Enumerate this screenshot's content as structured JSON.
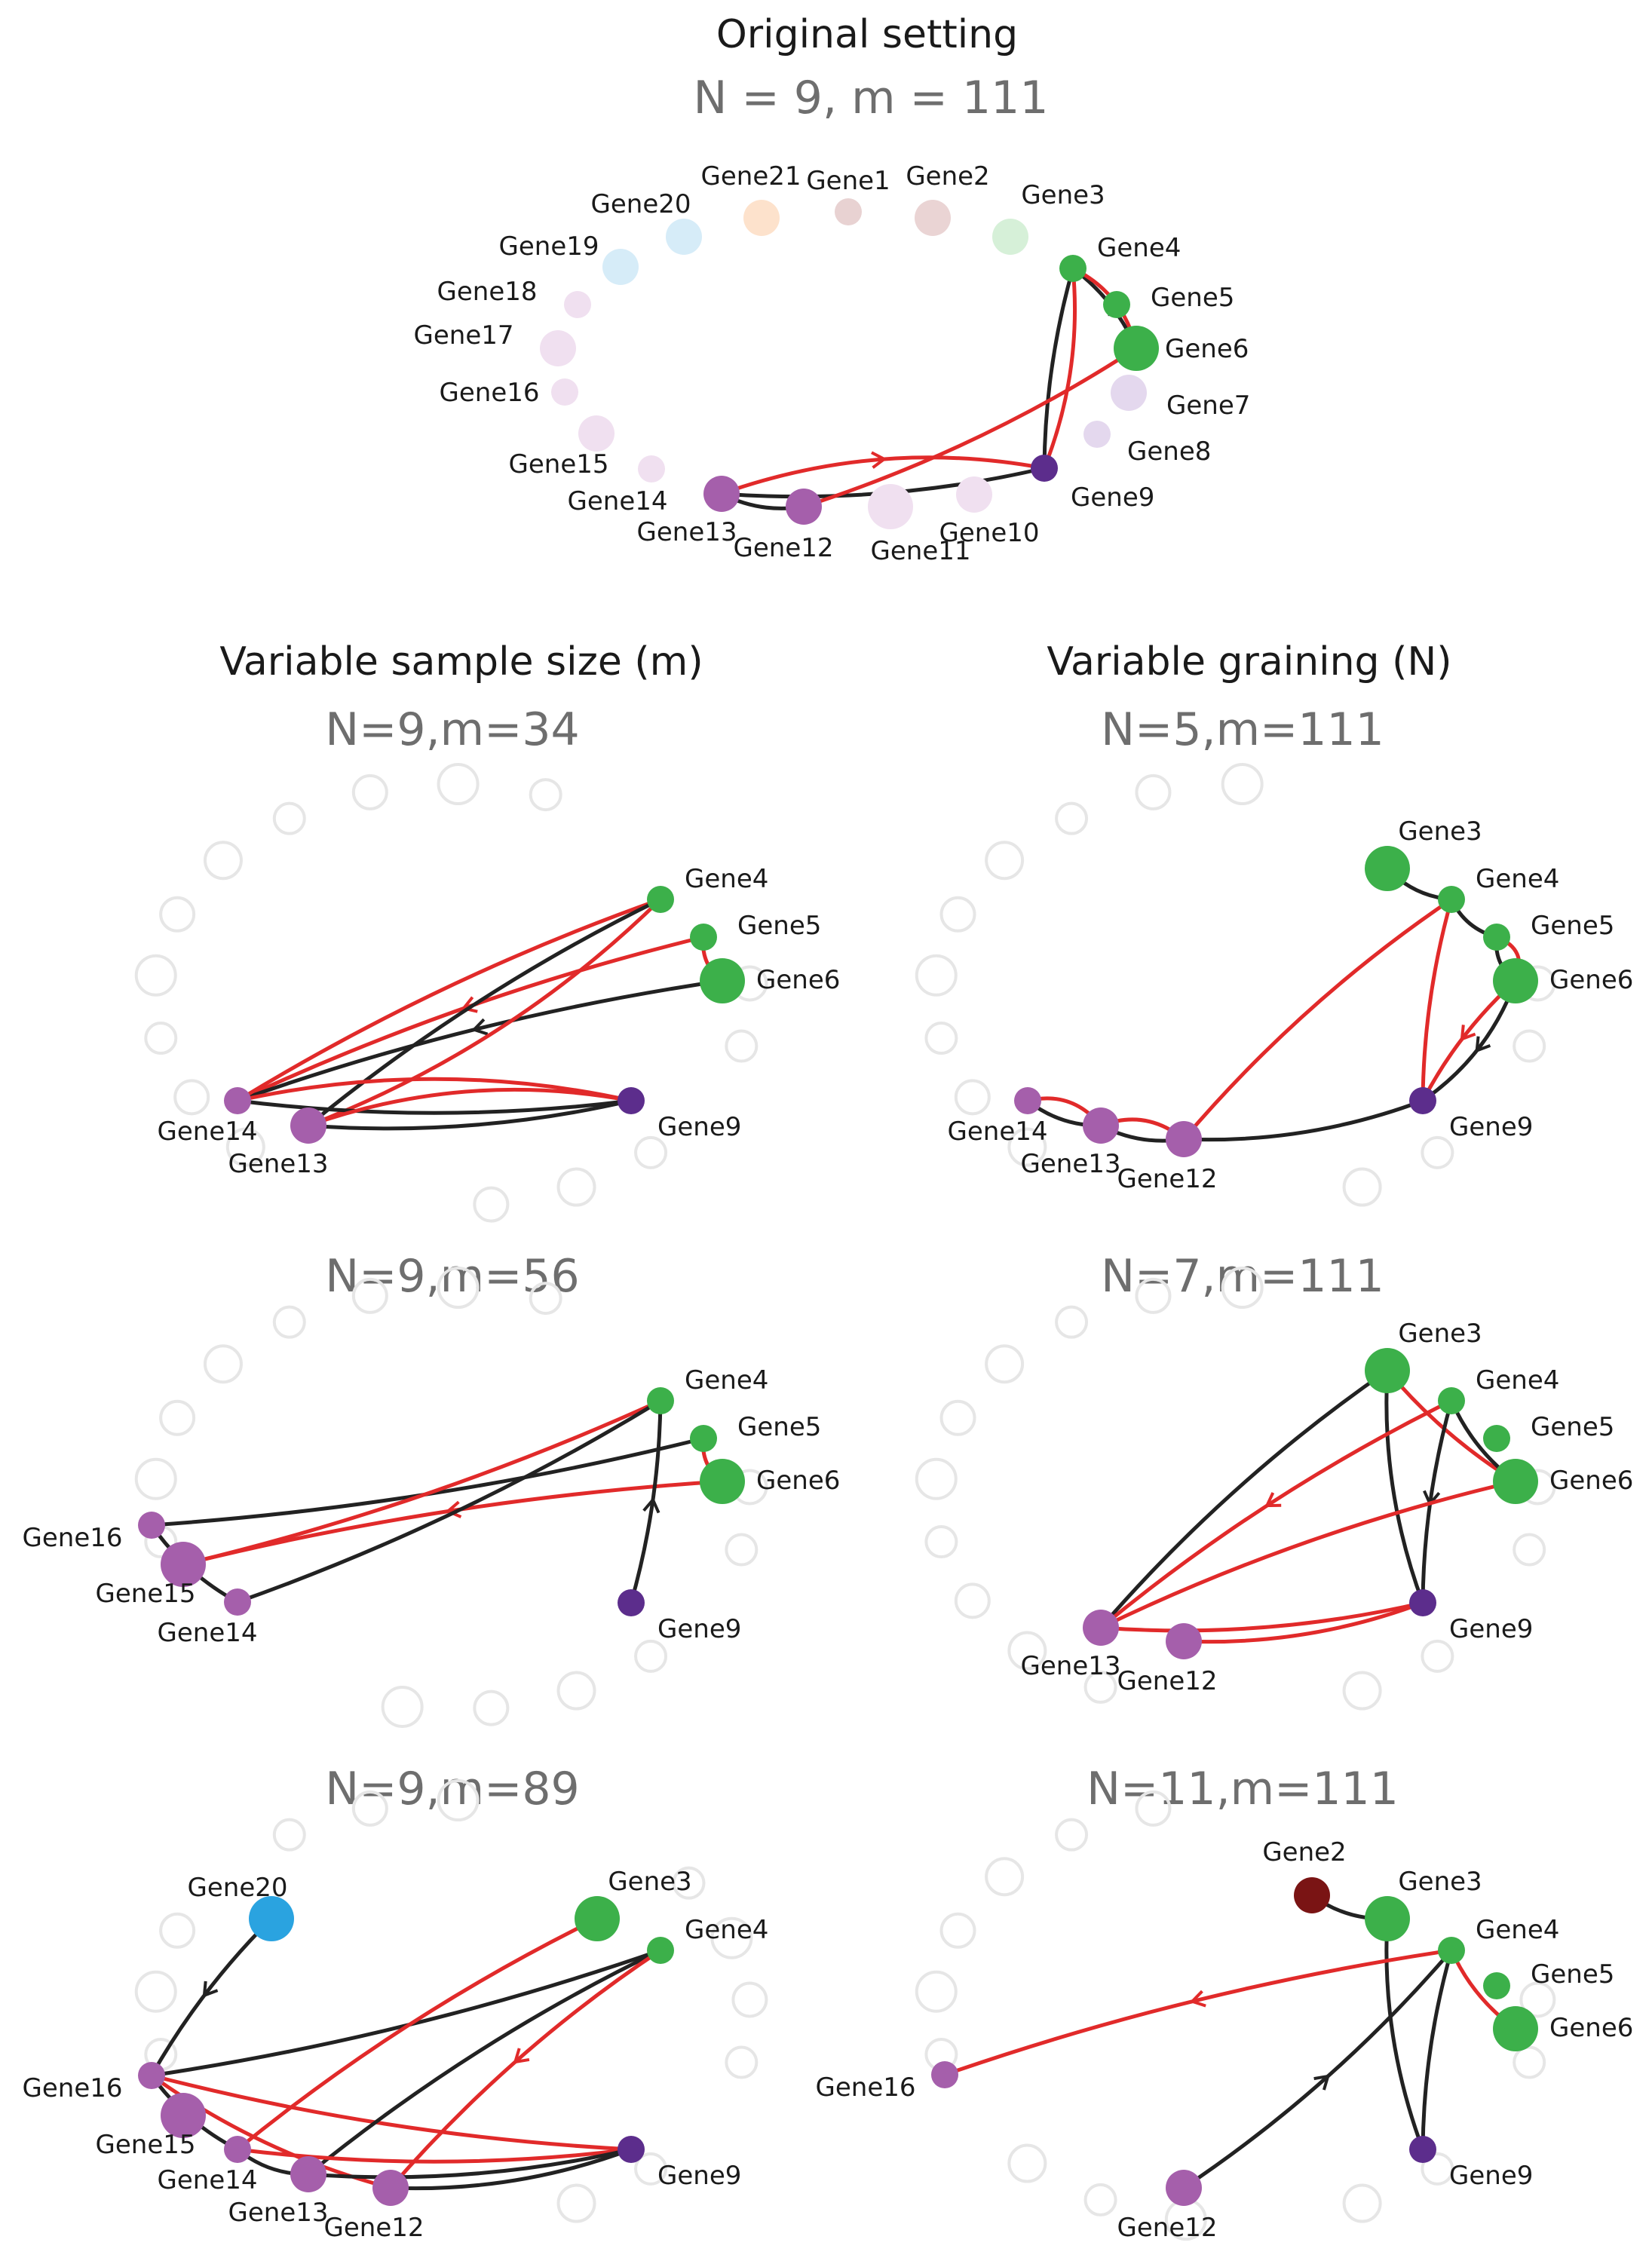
{
  "colors": {
    "black_edge": "#222222",
    "red_edge": "#e12a2a",
    "green": "#3cb04a",
    "purple_light": "#a55fab",
    "purple_dark": "#5c2d8c",
    "blue": "#2aa3e0",
    "maroon": "#7a1414",
    "hollow_stroke": "#e6e6e6"
  },
  "headers": {
    "original_title": "Original setting",
    "original_subtitle": "N = 9, m = 111",
    "left_column_title": "Variable sample size (m)",
    "right_column_title": "Variable graining (N)"
  },
  "panels": [
    {
      "id": "original",
      "subtitle": "N = 9, m = 111",
      "style": "full",
      "nodes": [
        {
          "gene": "Gene1",
          "color": "#e8d2d2",
          "size": "small"
        },
        {
          "gene": "Gene2",
          "color": "#ead4d4",
          "size": "medium"
        },
        {
          "gene": "Gene3",
          "color": "#d6f0d8",
          "size": "medium"
        },
        {
          "gene": "Gene4",
          "color": "#3cb04a",
          "size": "small",
          "active": true
        },
        {
          "gene": "Gene5",
          "color": "#3cb04a",
          "size": "small",
          "active": true
        },
        {
          "gene": "Gene6",
          "color": "#3cb04a",
          "size": "large",
          "active": true
        },
        {
          "gene": "Gene7",
          "color": "#e4d8ee",
          "size": "medium"
        },
        {
          "gene": "Gene8",
          "color": "#e4d8ee",
          "size": "small"
        },
        {
          "gene": "Gene9",
          "color": "#5c2d8c",
          "size": "small",
          "active": true
        },
        {
          "gene": "Gene10",
          "color": "#f0e0f0",
          "size": "medium"
        },
        {
          "gene": "Gene11",
          "color": "#f0e0f0",
          "size": "large"
        },
        {
          "gene": "Gene12",
          "color": "#a55fab",
          "size": "medium",
          "active": true
        },
        {
          "gene": "Gene13",
          "color": "#a55fab",
          "size": "medium",
          "active": true
        },
        {
          "gene": "Gene14",
          "color": "#f0e0f0",
          "size": "small"
        },
        {
          "gene": "Gene15",
          "color": "#f0e0f0",
          "size": "medium"
        },
        {
          "gene": "Gene16",
          "color": "#f0e0f0",
          "size": "small"
        },
        {
          "gene": "Gene17",
          "color": "#f0e0f0",
          "size": "medium"
        },
        {
          "gene": "Gene18",
          "color": "#f0e0f0",
          "size": "small"
        },
        {
          "gene": "Gene19",
          "color": "#d6ecf8",
          "size": "medium"
        },
        {
          "gene": "Gene20",
          "color": "#d6ecf8",
          "size": "medium"
        },
        {
          "gene": "Gene21",
          "color": "#fde2cc",
          "size": "medium"
        }
      ],
      "edges": [
        {
          "from": "Gene6",
          "to": "Gene4",
          "color": "black",
          "arrow": true
        },
        {
          "from": "Gene4",
          "to": "Gene6",
          "color": "red"
        },
        {
          "from": "Gene4",
          "to": "Gene9",
          "color": "black"
        },
        {
          "from": "Gene4",
          "to": "Gene9",
          "color": "red"
        },
        {
          "from": "Gene13",
          "to": "Gene9",
          "color": "black"
        },
        {
          "from": "Gene13",
          "to": "Gene9",
          "color": "red",
          "arrow": true
        },
        {
          "from": "Gene12",
          "to": "Gene6",
          "color": "red"
        },
        {
          "from": "Gene13",
          "to": "Gene12",
          "color": "black"
        }
      ]
    },
    {
      "id": "m34",
      "subtitle": "N=9,m=34",
      "style": "hollow",
      "nodes": [
        {
          "gene": "Gene4",
          "color": "#3cb04a",
          "size": "small"
        },
        {
          "gene": "Gene5",
          "color": "#3cb04a",
          "size": "small"
        },
        {
          "gene": "Gene6",
          "color": "#3cb04a",
          "size": "large"
        },
        {
          "gene": "Gene9",
          "color": "#5c2d8c",
          "size": "small"
        },
        {
          "gene": "Gene13",
          "color": "#a55fab",
          "size": "medium"
        },
        {
          "gene": "Gene14",
          "color": "#a55fab",
          "size": "small"
        }
      ],
      "edges": [
        {
          "from": "Gene5",
          "to": "Gene14",
          "color": "red",
          "arrow": true
        },
        {
          "from": "Gene5",
          "to": "Gene6",
          "color": "red"
        },
        {
          "from": "Gene6",
          "to": "Gene14",
          "color": "black",
          "arrow": true
        },
        {
          "from": "Gene4",
          "to": "Gene14",
          "color": "red"
        },
        {
          "from": "Gene4",
          "to": "Gene13",
          "color": "black"
        },
        {
          "from": "Gene4",
          "to": "Gene13",
          "color": "red"
        },
        {
          "from": "Gene14",
          "to": "Gene9",
          "color": "black"
        },
        {
          "from": "Gene14",
          "to": "Gene9",
          "color": "red"
        },
        {
          "from": "Gene13",
          "to": "Gene9",
          "color": "black"
        },
        {
          "from": "Gene13",
          "to": "Gene9",
          "color": "red"
        }
      ]
    },
    {
      "id": "n5",
      "subtitle": "N=5,m=111",
      "style": "hollow",
      "nodes": [
        {
          "gene": "Gene3",
          "color": "#3cb04a",
          "size": "large"
        },
        {
          "gene": "Gene4",
          "color": "#3cb04a",
          "size": "small"
        },
        {
          "gene": "Gene5",
          "color": "#3cb04a",
          "size": "small"
        },
        {
          "gene": "Gene6",
          "color": "#3cb04a",
          "size": "large"
        },
        {
          "gene": "Gene9",
          "color": "#5c2d8c",
          "size": "small"
        },
        {
          "gene": "Gene12",
          "color": "#a55fab",
          "size": "medium"
        },
        {
          "gene": "Gene13",
          "color": "#a55fab",
          "size": "medium"
        },
        {
          "gene": "Gene14",
          "color": "#a55fab",
          "size": "small"
        }
      ],
      "edges": [
        {
          "from": "Gene3",
          "to": "Gene4",
          "color": "black"
        },
        {
          "from": "Gene4",
          "to": "Gene5",
          "color": "black"
        },
        {
          "from": "Gene5",
          "to": "Gene6",
          "color": "black"
        },
        {
          "from": "Gene5",
          "to": "Gene6",
          "color": "red"
        },
        {
          "from": "Gene4",
          "to": "Gene9",
          "color": "red"
        },
        {
          "from": "Gene6",
          "to": "Gene9",
          "color": "red",
          "arrow": true
        },
        {
          "from": "Gene6",
          "to": "Gene9",
          "color": "black",
          "arrow": true
        },
        {
          "from": "Gene4",
          "to": "Gene12",
          "color": "red"
        },
        {
          "from": "Gene12",
          "to": "Gene9",
          "color": "black"
        },
        {
          "from": "Gene14",
          "to": "Gene13",
          "color": "black"
        },
        {
          "from": "Gene14",
          "to": "Gene13",
          "color": "red"
        },
        {
          "from": "Gene13",
          "to": "Gene12",
          "color": "black"
        },
        {
          "from": "Gene13",
          "to": "Gene12",
          "color": "red"
        }
      ]
    },
    {
      "id": "m56",
      "subtitle": "N=9,m=56",
      "style": "hollow",
      "nodes": [
        {
          "gene": "Gene4",
          "color": "#3cb04a",
          "size": "small"
        },
        {
          "gene": "Gene5",
          "color": "#3cb04a",
          "size": "small"
        },
        {
          "gene": "Gene6",
          "color": "#3cb04a",
          "size": "large"
        },
        {
          "gene": "Gene9",
          "color": "#5c2d8c",
          "size": "small"
        },
        {
          "gene": "Gene14",
          "color": "#a55fab",
          "size": "small"
        },
        {
          "gene": "Gene15",
          "color": "#a55fab",
          "size": "large"
        },
        {
          "gene": "Gene16",
          "color": "#a55fab",
          "size": "small"
        }
      ],
      "edges": [
        {
          "from": "Gene16",
          "to": "Gene5",
          "color": "black"
        },
        {
          "from": "Gene15",
          "to": "Gene4",
          "color": "red"
        },
        {
          "from": "Gene6",
          "to": "Gene15",
          "color": "red",
          "arrow": true
        },
        {
          "from": "Gene5",
          "to": "Gene6",
          "color": "red"
        },
        {
          "from": "Gene14",
          "to": "Gene4",
          "color": "black"
        },
        {
          "from": "Gene9",
          "to": "Gene4",
          "color": "black",
          "arrow": true
        },
        {
          "from": "Gene16",
          "to": "Gene14",
          "color": "black"
        }
      ]
    },
    {
      "id": "n7",
      "subtitle": "N=7,m=111",
      "style": "hollow",
      "nodes": [
        {
          "gene": "Gene3",
          "color": "#3cb04a",
          "size": "large"
        },
        {
          "gene": "Gene4",
          "color": "#3cb04a",
          "size": "small"
        },
        {
          "gene": "Gene5",
          "color": "#3cb04a",
          "size": "small"
        },
        {
          "gene": "Gene6",
          "color": "#3cb04a",
          "size": "large"
        },
        {
          "gene": "Gene9",
          "color": "#5c2d8c",
          "size": "small"
        },
        {
          "gene": "Gene12",
          "color": "#a55fab",
          "size": "medium"
        },
        {
          "gene": "Gene13",
          "color": "#a55fab",
          "size": "medium"
        }
      ],
      "edges": [
        {
          "from": "Gene3",
          "to": "Gene13",
          "color": "black"
        },
        {
          "from": "Gene3",
          "to": "Gene9",
          "color": "black"
        },
        {
          "from": "Gene3",
          "to": "Gene6",
          "color": "red"
        },
        {
          "from": "Gene4",
          "to": "Gene6",
          "color": "black"
        },
        {
          "from": "Gene4",
          "to": "Gene9",
          "color": "black",
          "arrow": true
        },
        {
          "from": "Gene4",
          "to": "Gene13",
          "color": "red",
          "arrow": true
        },
        {
          "from": "Gene6",
          "to": "Gene13",
          "color": "red"
        },
        {
          "from": "Gene13",
          "to": "Gene9",
          "color": "red"
        },
        {
          "from": "Gene12",
          "to": "Gene9",
          "color": "red"
        }
      ]
    },
    {
      "id": "m89",
      "subtitle": "N=9,m=89",
      "style": "hollow",
      "nodes": [
        {
          "gene": "Gene3",
          "color": "#3cb04a",
          "size": "large"
        },
        {
          "gene": "Gene4",
          "color": "#3cb04a",
          "size": "small"
        },
        {
          "gene": "Gene9",
          "color": "#5c2d8c",
          "size": "small"
        },
        {
          "gene": "Gene12",
          "color": "#a55fab",
          "size": "medium"
        },
        {
          "gene": "Gene13",
          "color": "#a55fab",
          "size": "medium"
        },
        {
          "gene": "Gene14",
          "color": "#a55fab",
          "size": "small"
        },
        {
          "gene": "Gene15",
          "color": "#a55fab",
          "size": "large"
        },
        {
          "gene": "Gene16",
          "color": "#a55fab",
          "size": "small"
        },
        {
          "gene": "Gene20",
          "color": "#2aa3e0",
          "size": "large"
        }
      ],
      "edges": [
        {
          "from": "Gene20",
          "to": "Gene16",
          "color": "black",
          "arrow": true
        },
        {
          "from": "Gene16",
          "to": "Gene4",
          "color": "black"
        },
        {
          "from": "Gene16",
          "to": "Gene9",
          "color": "red"
        },
        {
          "from": "Gene16",
          "to": "Gene12",
          "color": "red"
        },
        {
          "from": "Gene16",
          "to": "Gene14",
          "color": "black"
        },
        {
          "from": "Gene3",
          "to": "Gene14",
          "color": "red"
        },
        {
          "from": "Gene4",
          "to": "Gene13",
          "color": "black"
        },
        {
          "from": "Gene4",
          "to": "Gene12",
          "color": "red",
          "arrow": true
        },
        {
          "from": "Gene14",
          "to": "Gene9",
          "color": "red"
        },
        {
          "from": "Gene13",
          "to": "Gene9",
          "color": "black"
        },
        {
          "from": "Gene12",
          "to": "Gene9",
          "color": "black"
        },
        {
          "from": "Gene14",
          "to": "Gene13",
          "color": "black"
        }
      ]
    },
    {
      "id": "n11",
      "subtitle": "N=11,m=111",
      "style": "hollow",
      "nodes": [
        {
          "gene": "Gene2",
          "color": "#7a1414",
          "size": "medium"
        },
        {
          "gene": "Gene3",
          "color": "#3cb04a",
          "size": "large"
        },
        {
          "gene": "Gene4",
          "color": "#3cb04a",
          "size": "small"
        },
        {
          "gene": "Gene5",
          "color": "#3cb04a",
          "size": "small"
        },
        {
          "gene": "Gene6",
          "color": "#3cb04a",
          "size": "large"
        },
        {
          "gene": "Gene9",
          "color": "#5c2d8c",
          "size": "small"
        },
        {
          "gene": "Gene12",
          "color": "#a55fab",
          "size": "medium"
        },
        {
          "gene": "Gene16",
          "color": "#a55fab",
          "size": "small"
        }
      ],
      "edges": [
        {
          "from": "Gene2",
          "to": "Gene3",
          "color": "black"
        },
        {
          "from": "Gene3",
          "to": "Gene9",
          "color": "black"
        },
        {
          "from": "Gene4",
          "to": "Gene9",
          "color": "black"
        },
        {
          "from": "Gene4",
          "to": "Gene6",
          "color": "red"
        },
        {
          "from": "Gene4",
          "to": "Gene16",
          "color": "red",
          "arrow": true
        },
        {
          "from": "Gene12",
          "to": "Gene4",
          "color": "black",
          "arrow": true
        }
      ]
    }
  ]
}
